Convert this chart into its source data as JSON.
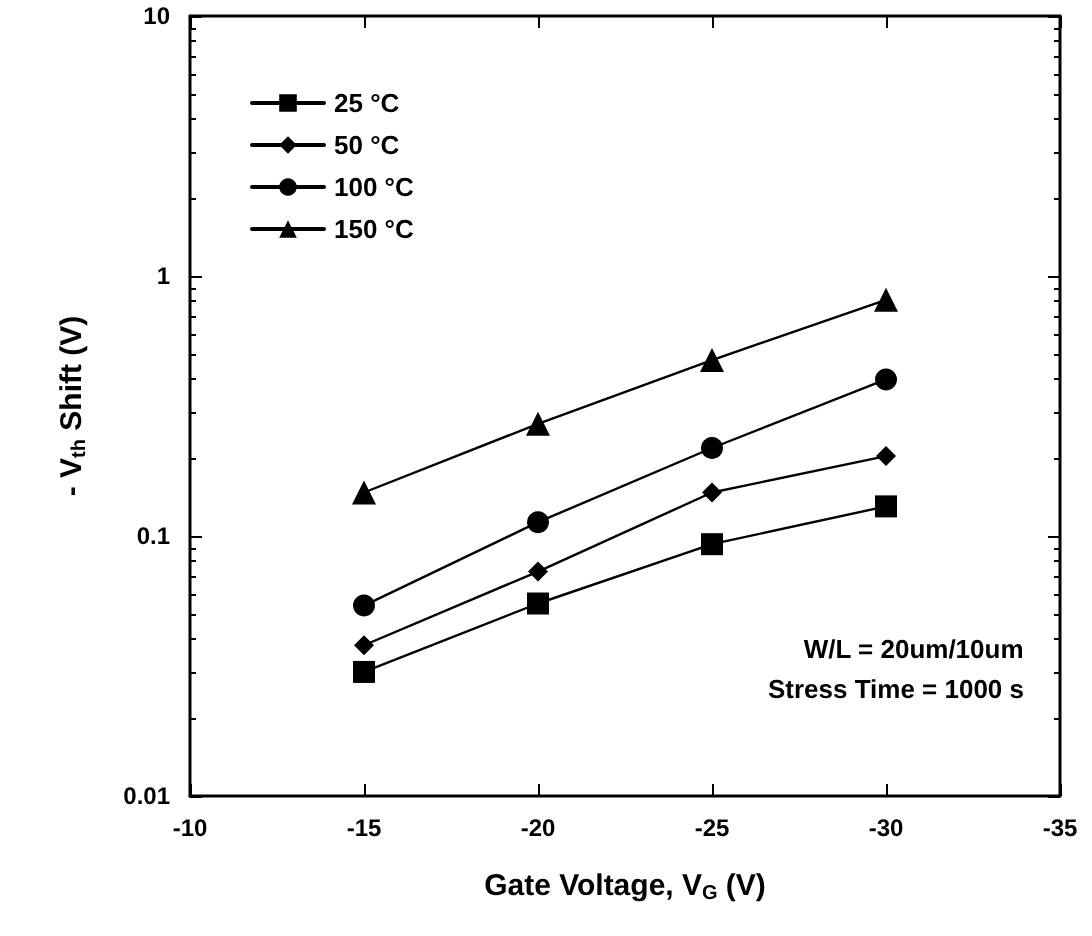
{
  "chart_data": {
    "type": "line",
    "xlabel": "Gate Voltage, V$_{G}$ (V)",
    "ylabel": "- V$_{th}$ Shift (V)",
    "x": [
      -15,
      -20,
      -25,
      -30
    ],
    "series": [
      {
        "name": "25 °C",
        "color": "#000000",
        "marker": "square",
        "values": [
          0.03,
          0.055,
          0.093,
          0.13
        ]
      },
      {
        "name": "50 °C",
        "color": "#000000",
        "marker": "diamond",
        "values": [
          0.038,
          0.073,
          0.147,
          0.203
        ]
      },
      {
        "name": "100 °C",
        "color": "#000000",
        "marker": "circle",
        "values": [
          0.054,
          0.113,
          0.218,
          0.4
        ]
      },
      {
        "name": "150 °C",
        "color": "#000000",
        "marker": "triangle",
        "values": [
          0.147,
          0.27,
          0.475,
          0.81
        ]
      }
    ],
    "xlim": [
      -10,
      -35
    ],
    "xticks": [
      -10,
      -15,
      -20,
      -25,
      -30,
      -35
    ],
    "ylim": [
      0.01,
      10
    ],
    "yticks": [
      0.01,
      0.1,
      1,
      10
    ],
    "log": "y",
    "grid": false,
    "legend": "top left",
    "line_style": "solid",
    "annotations": [
      "W/L = 20um/10um",
      "Stress Time = 1000 s"
    ]
  }
}
